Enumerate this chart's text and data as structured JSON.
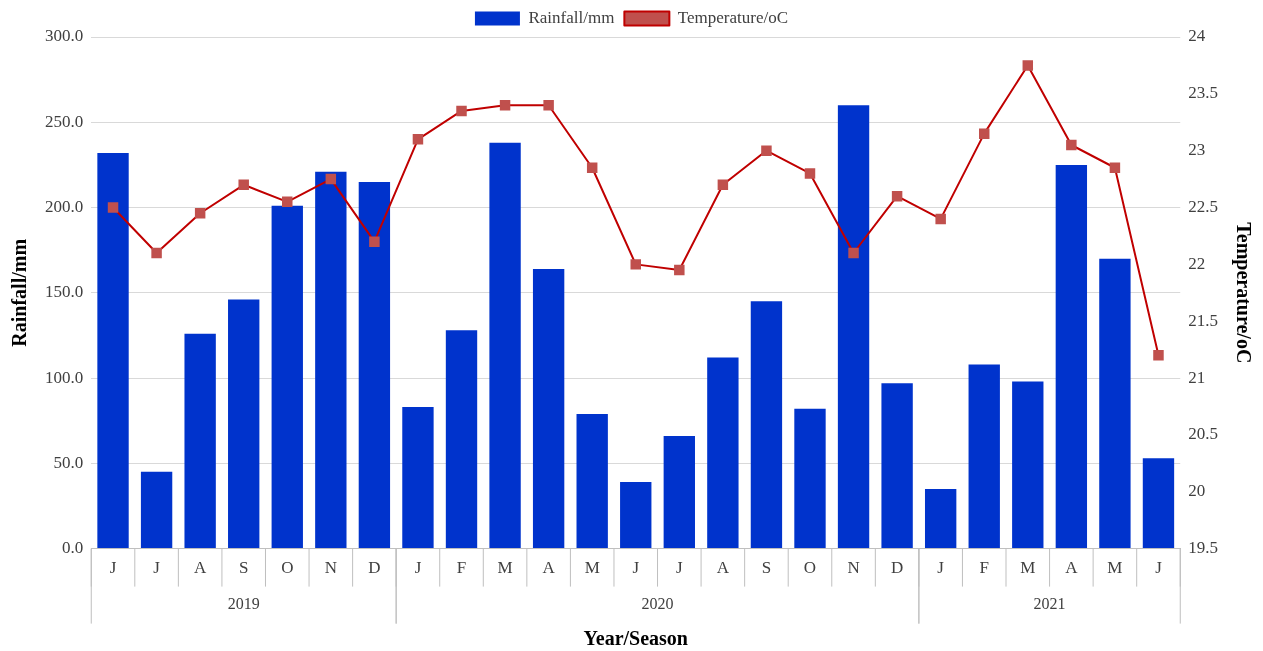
{
  "chart_data": {
    "type": "bar",
    "xlabel": "Year/Season",
    "ylabel": "Rainfall/mm",
    "y2label": "Temperature/oC",
    "categories": [
      "J",
      "J",
      "A",
      "S",
      "O",
      "N",
      "D",
      "J",
      "F",
      "M",
      "A",
      "M",
      "J",
      "J",
      "A",
      "S",
      "O",
      "N",
      "D",
      "J",
      "F",
      "M",
      "A",
      "M",
      "J"
    ],
    "series": [
      {
        "name": "Rainfall/mm",
        "color": "#0033cc",
        "values": [
          232,
          45,
          126,
          146,
          201,
          221,
          215,
          83,
          128,
          238,
          164,
          79,
          39,
          66,
          112,
          145,
          82,
          260,
          97,
          35,
          108,
          98,
          225,
          170,
          53
        ]
      },
      {
        "name": "Temperature/oC",
        "type": "line",
        "axis": "y2",
        "color": "#c00000",
        "values": [
          22.5,
          22.1,
          22.45,
          22.7,
          22.55,
          22.75,
          22.2,
          23.1,
          23.35,
          23.4,
          23.4,
          22.85,
          22.0,
          21.95,
          22.7,
          23.0,
          22.8,
          22.1,
          22.6,
          22.4,
          23.15,
          23.75,
          23.05,
          22.85,
          21.2
        ]
      }
    ],
    "ylim": [
      0,
      300
    ],
    "yticks": [
      {
        "value": 0,
        "label": "0.0"
      },
      {
        "value": 50,
        "label": "50.0"
      },
      {
        "value": 100,
        "label": "100.0"
      },
      {
        "value": 150,
        "label": "150.0"
      },
      {
        "value": 200,
        "label": "200.0"
      },
      {
        "value": 250,
        "label": "250.0"
      },
      {
        "value": 300,
        "label": "300.0"
      }
    ],
    "y2lim": [
      19.5,
      24
    ],
    "y2ticks": [
      19.5,
      20,
      20.5,
      21,
      21.5,
      22,
      22.5,
      23,
      23.5,
      24
    ],
    "annotations": [
      "2019",
      "2020",
      "2021"
    ],
    "grid": "y",
    "legend": "top",
    "marker": "square",
    "line_style": "solid"
  }
}
